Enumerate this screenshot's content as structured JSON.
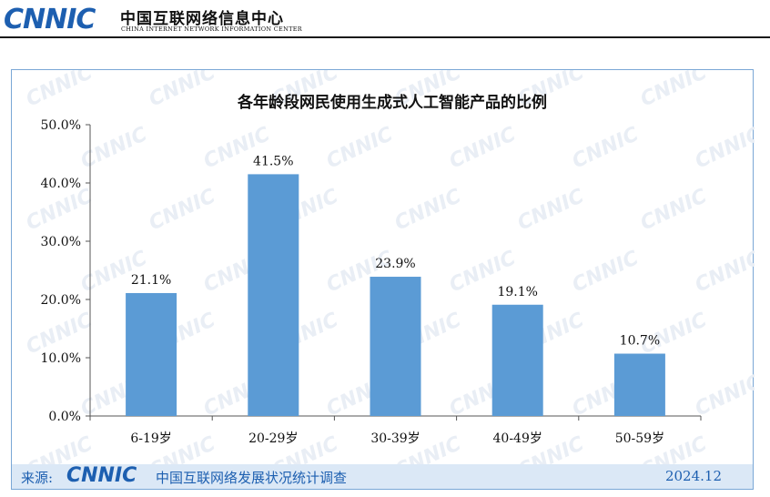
{
  "header": {
    "logo": "CNNIC",
    "org_cn": "中国互联网络信息中心",
    "org_en": "CHINA INTERNET NETWORK INFORMATION CENTER"
  },
  "chart_data": {
    "type": "bar",
    "title": "各年龄段网民使用生成式人工智能产品的比例",
    "categories": [
      "6-19岁",
      "20-29岁",
      "30-39岁",
      "40-49岁",
      "50-59岁"
    ],
    "values": [
      21.1,
      41.5,
      23.9,
      19.1,
      10.7
    ],
    "value_labels": [
      "21.1%",
      "41.5%",
      "23.9%",
      "19.1%",
      "10.7%"
    ],
    "ylim": [
      0,
      50
    ],
    "y_ticks": [
      "0.0%",
      "10.0%",
      "20.0%",
      "30.0%",
      "40.0%",
      "50.0%"
    ],
    "bar_color": "#5b9bd5",
    "grid": false,
    "legend": "none"
  },
  "footer": {
    "source_label": "来源:",
    "source_logo": "CNNIC",
    "source_text": "中国互联网络发展状况统计调查",
    "date": "2024.12"
  },
  "colors": {
    "brand": "#1d5fb0",
    "footer_bg": "#dbe8f6",
    "frame": "#7aa7d6"
  }
}
